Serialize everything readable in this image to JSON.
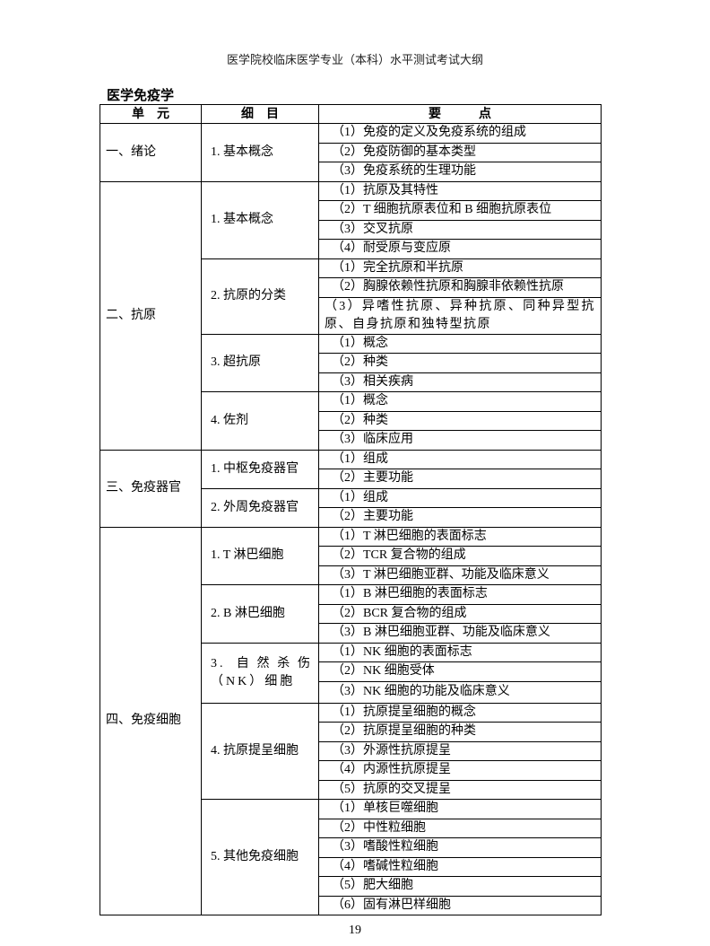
{
  "header": "医学院校临床医学专业（本科）水平测试考试大纲",
  "section_title": "医学免疫学",
  "table": {
    "columns": [
      "单　元",
      "细　目",
      "要　　　点"
    ],
    "units": [
      {
        "name": "一、绪论",
        "subs": [
          {
            "name": "1. 基本概念",
            "points": [
              "（1）免疫的定义及免疫系统的组成",
              "（2）免疫防御的基本类型",
              "（3）免疫系统的生理功能"
            ]
          }
        ]
      },
      {
        "name": "二、抗原",
        "subs": [
          {
            "name": "1. 基本概念",
            "points": [
              "（1）抗原及其特性",
              "（2）T 细胞抗原表位和 B 细胞抗原表位",
              "（3）交叉抗原",
              "（4）耐受原与变应原"
            ]
          },
          {
            "name": "2. 抗原的分类",
            "points": [
              "（1）完全抗原和半抗原",
              "（2）胸腺依赖性抗原和胸腺非依赖性抗原",
              "（3）异嗜性抗原、异种抗原、同种异型抗原、自身抗原和独特型抗原"
            ]
          },
          {
            "name": "3. 超抗原",
            "points": [
              "（1）概念",
              "（2）种类",
              "（3）相关疾病"
            ]
          },
          {
            "name": "4. 佐剂",
            "points": [
              "（1）概念",
              "（2）种类",
              "（3）临床应用"
            ]
          }
        ]
      },
      {
        "name": "三、免疫器官",
        "subs": [
          {
            "name": "1. 中枢免疫器官",
            "points": [
              "（1）组成",
              "（2）主要功能"
            ]
          },
          {
            "name": "2. 外周免疫器官",
            "points": [
              "（1）组成",
              "（2）主要功能"
            ]
          }
        ]
      },
      {
        "name": "四、免疫细胞",
        "subs": [
          {
            "name": "1. T 淋巴细胞",
            "points": [
              "（1）T 淋巴细胞的表面标志",
              "（2）TCR 复合物的组成",
              "（3）T 淋巴细胞亚群、功能及临床意义"
            ]
          },
          {
            "name": "2. B 淋巴细胞",
            "points": [
              "（1）B 淋巴细胞的表面标志",
              "（2）BCR 复合物的组成",
              "（3）B 淋巴细胞亚群、功能及临床意义"
            ]
          },
          {
            "name": "3. 自然杀伤（NK）细胞",
            "points": [
              "（1）NK 细胞的表面标志",
              "（2）NK 细胞受体",
              "（3）NK 细胞的功能及临床意义"
            ]
          },
          {
            "name": "4. 抗原提呈细胞",
            "points": [
              "（1）抗原提呈细胞的概念",
              "（2）抗原提呈细胞的种类",
              "（3）外源性抗原提呈",
              "（4）内源性抗原提呈",
              "（5）抗原的交叉提呈"
            ]
          },
          {
            "name": "5. 其他免疫细胞",
            "points": [
              "（1）单核巨噬细胞",
              "（2）中性粒细胞",
              "（3）嗜酸性粒细胞",
              "（4）嗜碱性粒细胞",
              "（5）肥大细胞",
              "（6）固有淋巴样细胞"
            ]
          }
        ]
      }
    ]
  },
  "page_number": "19"
}
